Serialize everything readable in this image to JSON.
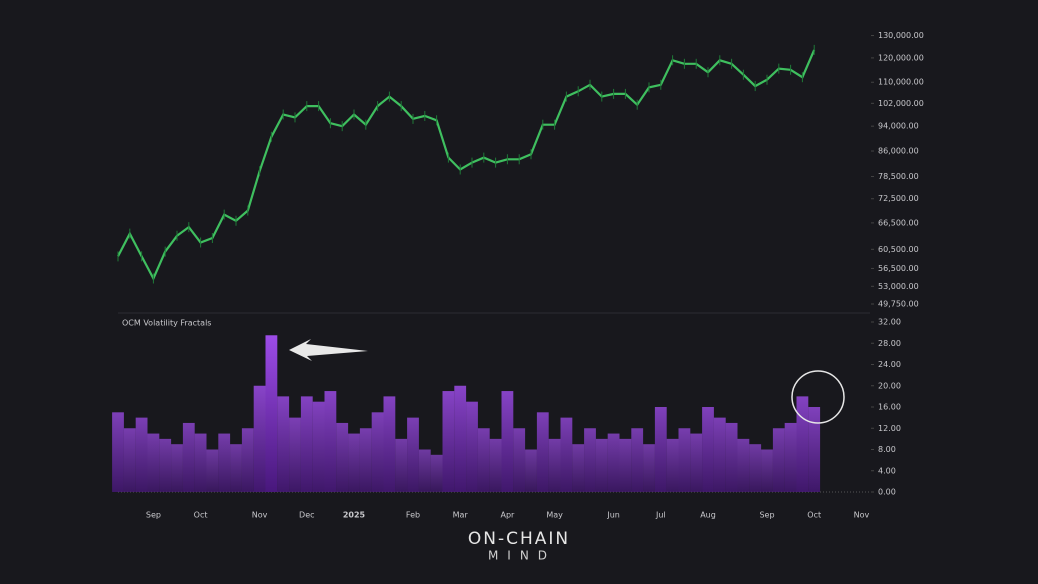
{
  "chart_data": [
    {
      "type": "line",
      "log_scale": true,
      "color": "#3fbf5f",
      "values": [
        59000,
        64000,
        59000,
        54500,
        60000,
        63500,
        65500,
        62000,
        63000,
        68500,
        67000,
        69500,
        80000,
        90500,
        98000,
        97000,
        101000,
        101000,
        95000,
        94000,
        98000,
        94500,
        101000,
        104500,
        101000,
        96500,
        97500,
        96000,
        84000,
        80500,
        82500,
        84000,
        82500,
        83500,
        83500,
        85000,
        94500,
        94500,
        104500,
        106500,
        109000,
        104500,
        105500,
        105500,
        101500,
        108000,
        109000,
        119000,
        117500,
        117500,
        114000,
        119000,
        117500,
        113000,
        108500,
        111000,
        115500,
        115000,
        112000,
        123500,
        null,
        null,
        null,
        null
      ],
      "ylim": [
        48000,
        135000
      ],
      "yticks": [
        {
          "value": 49750,
          "label": "49,750.00"
        },
        {
          "value": 53000,
          "label": "53,000.00"
        },
        {
          "value": 56500,
          "label": "56,500.00"
        },
        {
          "value": 60500,
          "label": "60,500.00"
        },
        {
          "value": 66500,
          "label": "66,500.00"
        },
        {
          "value": 72500,
          "label": "72,500.00"
        },
        {
          "value": 78500,
          "label": "78,500.00"
        },
        {
          "value": 86000,
          "label": "86,000.00"
        },
        {
          "value": 94000,
          "label": "94,000.00"
        },
        {
          "value": 102000,
          "label": "102,000.00"
        },
        {
          "value": 110000,
          "label": "110,000.00"
        },
        {
          "value": 120000,
          "label": "120,000.00"
        },
        {
          "value": 130000,
          "label": "130,000.00"
        }
      ]
    },
    {
      "type": "bar",
      "title": "OCM Volatility Fractals",
      "color": "#8a2ed6",
      "categories": [
        null,
        null,
        null,
        "Sep",
        null,
        null,
        null,
        "Oct",
        null,
        null,
        null,
        null,
        "Nov",
        null,
        null,
        null,
        "Dec",
        null,
        null,
        null,
        "2025",
        null,
        null,
        null,
        null,
        "Feb",
        null,
        null,
        null,
        "Mar",
        null,
        null,
        null,
        "Apr",
        null,
        null,
        null,
        "May",
        null,
        null,
        null,
        null,
        "Jun",
        null,
        null,
        null,
        "Jul",
        null,
        null,
        null,
        "Aug",
        null,
        null,
        null,
        null,
        "Sep",
        null,
        null,
        null,
        "Oct",
        null,
        null,
        null,
        "Nov"
      ],
      "values": [
        15,
        12,
        14,
        11,
        10,
        9,
        13,
        11,
        8,
        11,
        9,
        12,
        20,
        29.5,
        18,
        14,
        18,
        17,
        19,
        13,
        11,
        12,
        15,
        18,
        10,
        14,
        8,
        7,
        19,
        20,
        17,
        12,
        10,
        19,
        12,
        8,
        15,
        10,
        14,
        9,
        12,
        10,
        11,
        10,
        12,
        9,
        16,
        10,
        12,
        11,
        16,
        14,
        13,
        10,
        9,
        8,
        12,
        13,
        18,
        16,
        null,
        null,
        null,
        null
      ],
      "ylim": [
        0,
        32
      ],
      "yticks": [
        {
          "value": 0,
          "label": "0.00"
        },
        {
          "value": 4,
          "label": "4.00"
        },
        {
          "value": 8,
          "label": "8.00"
        },
        {
          "value": 12,
          "label": "12.00"
        },
        {
          "value": 16,
          "label": "16.00"
        },
        {
          "value": 20,
          "label": "20.00"
        },
        {
          "value": 24,
          "label": "24.00"
        },
        {
          "value": 28,
          "label": "28.00"
        },
        {
          "value": 32,
          "label": "32.00"
        }
      ]
    }
  ],
  "brand": {
    "line1": "ON-CHAIN",
    "line2": "MIND"
  }
}
